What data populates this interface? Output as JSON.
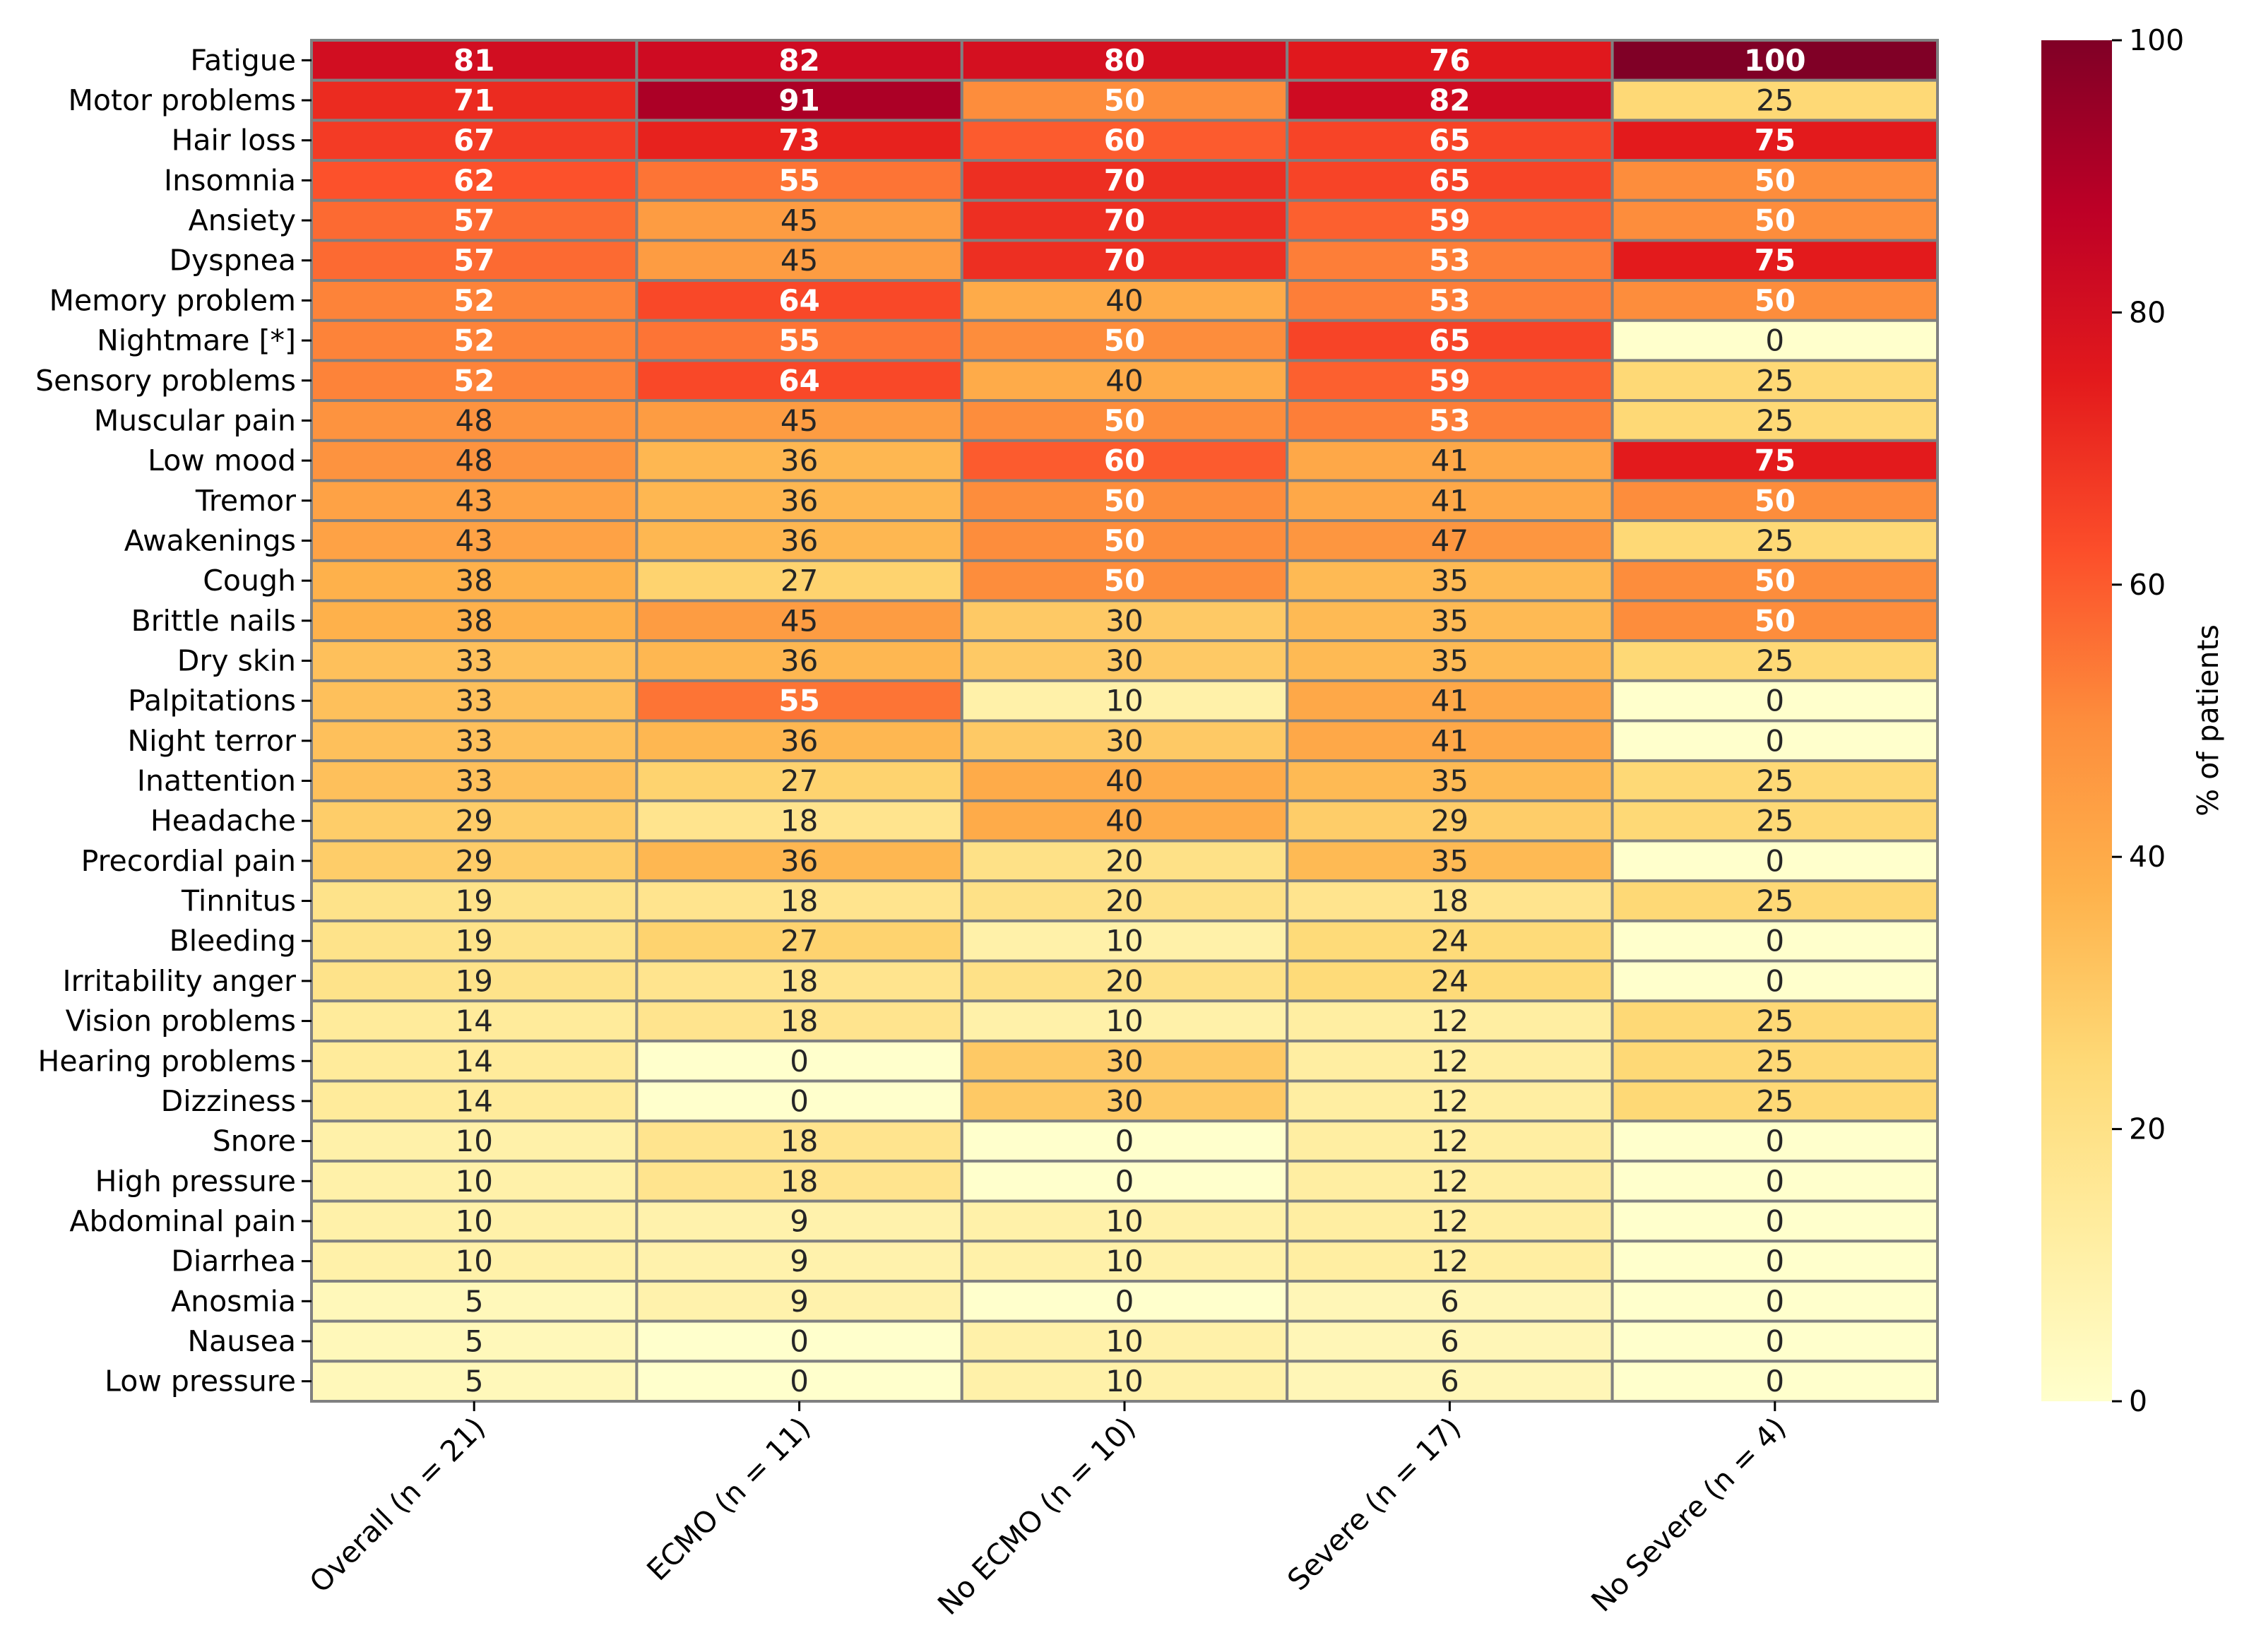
{
  "chart_data": {
    "type": "heatmap",
    "title": "",
    "xlabel": "",
    "ylabel": "",
    "colorbar": {
      "label": "% of patients",
      "range": [
        0,
        100
      ],
      "ticks": [
        0,
        20,
        40,
        60,
        80,
        100
      ],
      "colormap": "YlOrRd"
    },
    "columns": [
      "Overall (n = 21)",
      "ECMO (n = 11)",
      "No ECMO (n = 10)",
      "Severe (n = 17)",
      "No Severe (n = 4)"
    ],
    "rows": [
      "Fatigue",
      "Motor problems",
      "Hair loss",
      "Insomnia",
      "Ansiety",
      "Dyspnea",
      "Memory problem",
      "Nightmare [*]",
      "Sensory problems",
      "Muscular pain",
      "Low mood",
      "Tremor",
      "Awakenings",
      "Cough",
      "Brittle nails",
      "Dry skin",
      "Palpitations",
      "Night terror",
      "Inattention",
      "Headache",
      "Precordial pain",
      "Tinnitus",
      "Bleeding",
      "Irritability anger",
      "Vision problems",
      "Hearing problems",
      "Dizziness",
      "Snore",
      "High pressure",
      "Abdominal pain",
      "Diarrhea",
      "Anosmia",
      "Nausea",
      "Low pressure"
    ],
    "values": [
      [
        81,
        82,
        80,
        76,
        100
      ],
      [
        71,
        91,
        50,
        82,
        25
      ],
      [
        67,
        73,
        60,
        65,
        75
      ],
      [
        62,
        55,
        70,
        65,
        50
      ],
      [
        57,
        45,
        70,
        59,
        50
      ],
      [
        57,
        45,
        70,
        53,
        75
      ],
      [
        52,
        64,
        40,
        53,
        50
      ],
      [
        52,
        55,
        50,
        65,
        0
      ],
      [
        52,
        64,
        40,
        59,
        25
      ],
      [
        48,
        45,
        50,
        53,
        25
      ],
      [
        48,
        36,
        60,
        41,
        75
      ],
      [
        43,
        36,
        50,
        41,
        50
      ],
      [
        43,
        36,
        50,
        47,
        25
      ],
      [
        38,
        27,
        50,
        35,
        50
      ],
      [
        38,
        45,
        30,
        35,
        50
      ],
      [
        33,
        36,
        30,
        35,
        25
      ],
      [
        33,
        55,
        10,
        41,
        0
      ],
      [
        33,
        36,
        30,
        41,
        0
      ],
      [
        33,
        27,
        40,
        35,
        25
      ],
      [
        29,
        18,
        40,
        29,
        25
      ],
      [
        29,
        36,
        20,
        35,
        0
      ],
      [
        19,
        18,
        20,
        18,
        25
      ],
      [
        19,
        27,
        10,
        24,
        0
      ],
      [
        19,
        18,
        20,
        24,
        0
      ],
      [
        14,
        18,
        10,
        12,
        25
      ],
      [
        14,
        0,
        30,
        12,
        25
      ],
      [
        14,
        0,
        30,
        12,
        25
      ],
      [
        10,
        18,
        0,
        12,
        0
      ],
      [
        10,
        18,
        0,
        12,
        0
      ],
      [
        10,
        9,
        10,
        12,
        0
      ],
      [
        10,
        9,
        10,
        12,
        0
      ],
      [
        5,
        9,
        0,
        6,
        0
      ],
      [
        5,
        0,
        10,
        6,
        0
      ],
      [
        5,
        0,
        10,
        6,
        0
      ]
    ],
    "colors": {
      "gridline": "#808080",
      "colormap_stops": [
        "#ffffcc",
        "#ffeda0",
        "#fed976",
        "#feb24c",
        "#fd8d3c",
        "#fc4e2a",
        "#e31a1c",
        "#bd0026",
        "#800026"
      ]
    }
  }
}
